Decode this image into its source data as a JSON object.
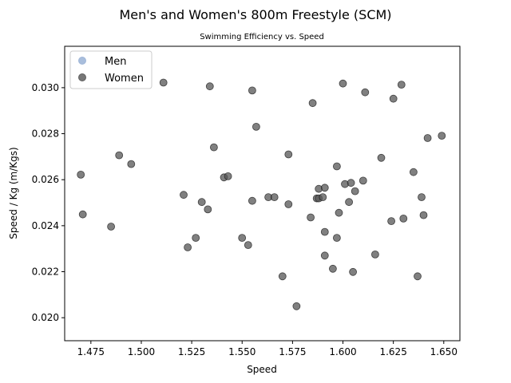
{
  "chart_data": {
    "type": "scatter",
    "title": "Men's and Women's 800m Freestyle (SCM)",
    "subtitle": "Swimming Efficiency vs. Speed",
    "xlabel": "Speed",
    "ylabel": "Speed / Kg (m/Kgs)",
    "xlim": [
      1.462,
      1.658
    ],
    "ylim": [
      0.019,
      0.0318
    ],
    "xticks": [
      "1.475",
      "1.500",
      "1.525",
      "1.550",
      "1.575",
      "1.600",
      "1.625",
      "1.650"
    ],
    "yticks": [
      "0.020",
      "0.022",
      "0.024",
      "0.026",
      "0.028",
      "0.030"
    ],
    "legend_position": "top-left",
    "grid": false,
    "series": [
      {
        "name": "Men",
        "color": "#9ab3d6",
        "points": []
      },
      {
        "name": "Women",
        "color": "#555555",
        "points": [
          [
            1.47,
            0.02622
          ],
          [
            1.471,
            0.02449
          ],
          [
            1.485,
            0.02396
          ],
          [
            1.489,
            0.02706
          ],
          [
            1.495,
            0.02668
          ],
          [
            1.511,
            0.03022
          ],
          [
            1.521,
            0.02534
          ],
          [
            1.523,
            0.02306
          ],
          [
            1.527,
            0.02347
          ],
          [
            1.53,
            0.02503
          ],
          [
            1.533,
            0.02471
          ],
          [
            1.534,
            0.03006
          ],
          [
            1.536,
            0.02741
          ],
          [
            1.541,
            0.0261
          ],
          [
            1.543,
            0.02615
          ],
          [
            1.55,
            0.02347
          ],
          [
            1.553,
            0.02316
          ],
          [
            1.555,
            0.02508
          ],
          [
            1.555,
            0.02988
          ],
          [
            1.557,
            0.0283
          ],
          [
            1.563,
            0.02524
          ],
          [
            1.566,
            0.02524
          ],
          [
            1.57,
            0.0218
          ],
          [
            1.573,
            0.02493
          ],
          [
            1.573,
            0.0271
          ],
          [
            1.577,
            0.0205
          ],
          [
            1.584,
            0.02436
          ],
          [
            1.585,
            0.02933
          ],
          [
            1.587,
            0.02519
          ],
          [
            1.588,
            0.0256
          ],
          [
            1.588,
            0.02519
          ],
          [
            1.59,
            0.02524
          ],
          [
            1.591,
            0.02373
          ],
          [
            1.591,
            0.0227
          ],
          [
            1.591,
            0.02565
          ],
          [
            1.595,
            0.02213
          ],
          [
            1.597,
            0.02658
          ],
          [
            1.597,
            0.02347
          ],
          [
            1.598,
            0.02456
          ],
          [
            1.6,
            0.03018
          ],
          [
            1.601,
            0.02581
          ],
          [
            1.603,
            0.02503
          ],
          [
            1.604,
            0.02586
          ],
          [
            1.605,
            0.02199
          ],
          [
            1.606,
            0.0255
          ],
          [
            1.61,
            0.02596
          ],
          [
            1.611,
            0.0298
          ],
          [
            1.616,
            0.02275
          ],
          [
            1.619,
            0.02695
          ],
          [
            1.624,
            0.0242
          ],
          [
            1.625,
            0.02952
          ],
          [
            1.629,
            0.03013
          ],
          [
            1.63,
            0.02431
          ],
          [
            1.635,
            0.02633
          ],
          [
            1.637,
            0.0218
          ],
          [
            1.639,
            0.02524
          ],
          [
            1.64,
            0.02446
          ],
          [
            1.642,
            0.02781
          ],
          [
            1.649,
            0.02791
          ]
        ]
      }
    ]
  }
}
